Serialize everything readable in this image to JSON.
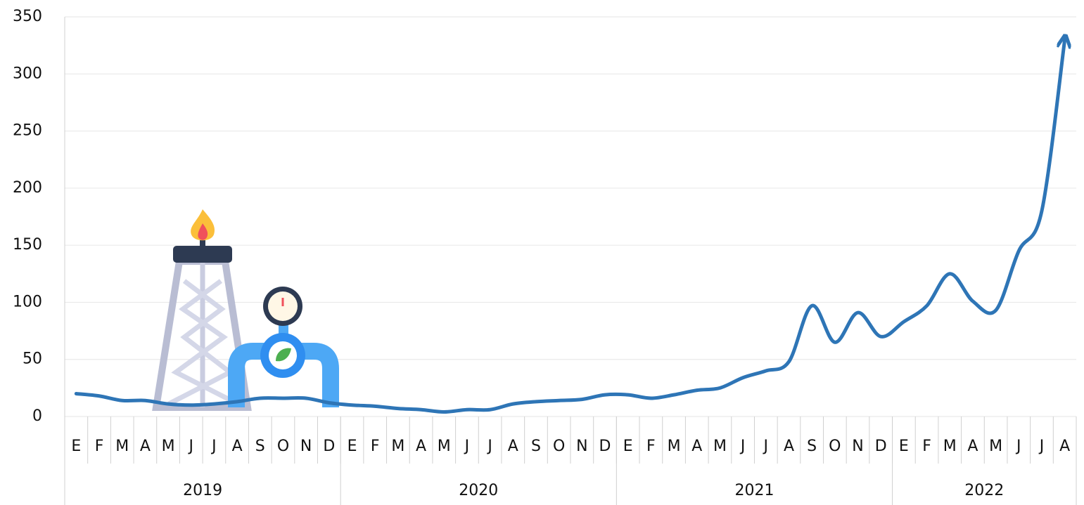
{
  "chart_data": {
    "type": "line",
    "groups": [
      {
        "label": "2019",
        "categories": [
          "E",
          "F",
          "M",
          "A",
          "M",
          "J",
          "J",
          "A",
          "S",
          "O",
          "N",
          "D"
        ]
      },
      {
        "label": "2020",
        "categories": [
          "E",
          "F",
          "M",
          "A",
          "M",
          "J",
          "J",
          "A",
          "S",
          "O",
          "N",
          "D"
        ]
      },
      {
        "label": "2021",
        "categories": [
          "E",
          "F",
          "M",
          "A",
          "M",
          "J",
          "J",
          "A",
          "S",
          "O",
          "N",
          "D"
        ]
      },
      {
        "label": "2022",
        "categories": [
          "E",
          "F",
          "M",
          "A",
          "M",
          "J",
          "J",
          "A"
        ]
      }
    ],
    "series": [
      {
        "color": "#2e75b6",
        "values": [
          20,
          18,
          14,
          14,
          11,
          10,
          11,
          13,
          16,
          16,
          16,
          12,
          10,
          9,
          7,
          6,
          4,
          6,
          6,
          11,
          13,
          14,
          15,
          19,
          19,
          16,
          19,
          23,
          25,
          34,
          40,
          48,
          97,
          65,
          91,
          70,
          83,
          97,
          125,
          101,
          93,
          145,
          180,
          330
        ]
      }
    ],
    "ylim": [
      0,
      350
    ],
    "yticks": [
      0,
      50,
      100,
      150,
      200,
      250,
      300,
      350
    ],
    "grid": true
  }
}
